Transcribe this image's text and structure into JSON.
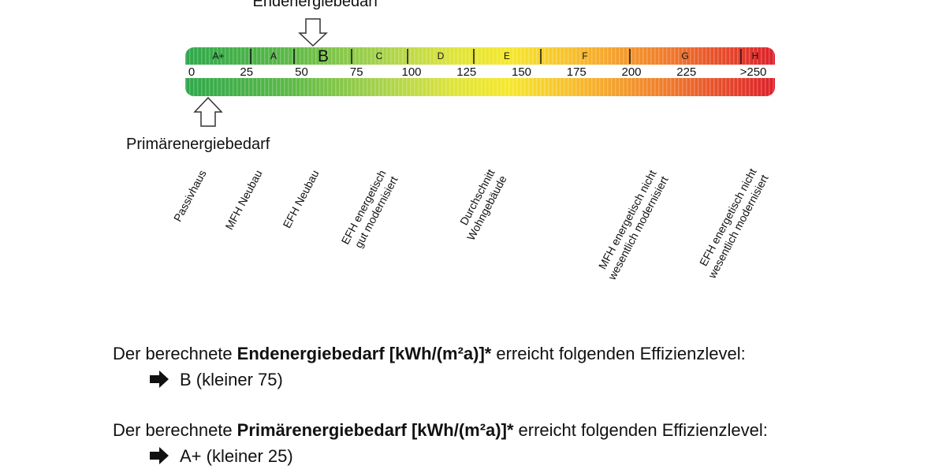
{
  "scale": {
    "end_label": "Endenergiebedarf",
    "primary_label": "Primärenergiebedarf",
    "classes": [
      "A+",
      "A",
      "B",
      "C",
      "D",
      "E",
      "F",
      "G",
      "H"
    ],
    "ticks": [
      0,
      25,
      50,
      75,
      100,
      125,
      150,
      175,
      200,
      225,
      {
        "value": 250,
        "label": ">250"
      }
    ],
    "building_types": [
      [
        "Passivhaus"
      ],
      [
        "MFH Neubau"
      ],
      [
        "EFH Neubau"
      ],
      [
        "EFH energetisch",
        "gut modernisiert"
      ],
      [
        "Durchschnitt",
        "Wohngebäude"
      ],
      [
        "MFH energetisch nicht",
        "wesentlich modernisiert"
      ],
      [
        "EFH energetisch nicht",
        "wesentlich modernisiert"
      ]
    ]
  },
  "statements": [
    {
      "prefix": "Der berechnete",
      "term": "Endenergiebedarf [kWh/(m²a)]*",
      "suffix": "erreicht folgenden Effizienzlevel:",
      "result": "B (kleiner 75)"
    },
    {
      "prefix": "Der berechnete",
      "term": "Primärenergiebedarf [kWh/(m²a)]*",
      "suffix": "erreicht folgenden Effizienzlevel:",
      "result": "A+ (kleiner 25)"
    }
  ]
}
